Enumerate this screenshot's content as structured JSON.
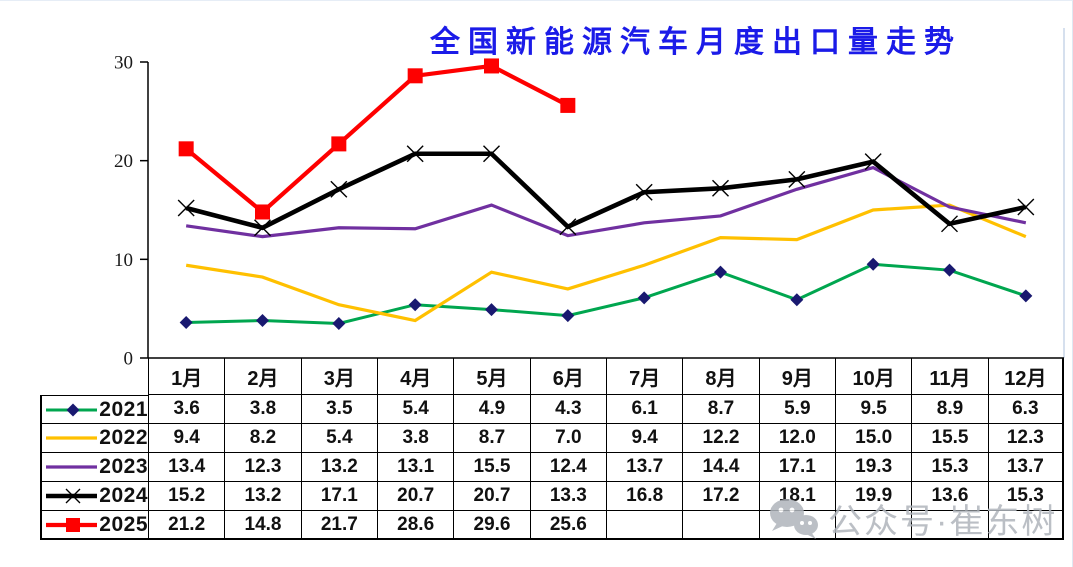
{
  "title": {
    "text": "全国新能源汽车月度出口量走势",
    "color": "#1b1be8"
  },
  "watermark": {
    "text": "公众号·崔东树",
    "icon": "wechat-icon",
    "color": "#b0b5bc"
  },
  "axis": {
    "color": "#000000",
    "plot_right_border_color": "#c8d5e8"
  },
  "chart_data": {
    "type": "line",
    "title": "全国新能源汽车月度出口量走势",
    "categories": [
      "1月",
      "2月",
      "3月",
      "4月",
      "5月",
      "6月",
      "7月",
      "8月",
      "9月",
      "10月",
      "11月",
      "12月"
    ],
    "xlabel": "",
    "ylabel": "",
    "ylim": [
      0,
      30
    ],
    "yticks": [
      0,
      10,
      20,
      30
    ],
    "grid": false,
    "legend_position": "table-left",
    "series": [
      {
        "name": "2021",
        "color": "#00A64F",
        "line_width": 3,
        "marker": "diamond",
        "marker_color": "#191970",
        "values": [
          3.6,
          3.8,
          3.5,
          5.4,
          4.9,
          4.3,
          6.1,
          8.7,
          5.9,
          9.5,
          8.9,
          6.3
        ]
      },
      {
        "name": "2022",
        "color": "#FFC000",
        "line_width": 3.2,
        "marker": "none",
        "marker_color": "#FFC000",
        "values": [
          9.4,
          8.2,
          5.4,
          3.8,
          8.7,
          7.0,
          9.4,
          12.2,
          12.0,
          15.0,
          15.5,
          12.3
        ]
      },
      {
        "name": "2023",
        "color": "#7030A0",
        "line_width": 3.2,
        "marker": "none",
        "marker_color": "#7030A0",
        "values": [
          13.4,
          12.3,
          13.2,
          13.1,
          15.5,
          12.4,
          13.7,
          14.4,
          17.1,
          19.3,
          15.3,
          13.7
        ]
      },
      {
        "name": "2024",
        "color": "#000000",
        "line_width": 4.6,
        "marker": "x",
        "marker_color": "#000000",
        "values": [
          15.2,
          13.2,
          17.1,
          20.7,
          20.7,
          13.3,
          16.8,
          17.2,
          18.1,
          19.9,
          13.6,
          15.3
        ]
      },
      {
        "name": "2025",
        "color": "#FE0000",
        "line_width": 4.2,
        "marker": "square",
        "marker_color": "#FE0000",
        "values": [
          21.2,
          14.8,
          21.7,
          28.6,
          29.6,
          25.6,
          null,
          null,
          null,
          null,
          null,
          null
        ]
      }
    ]
  }
}
